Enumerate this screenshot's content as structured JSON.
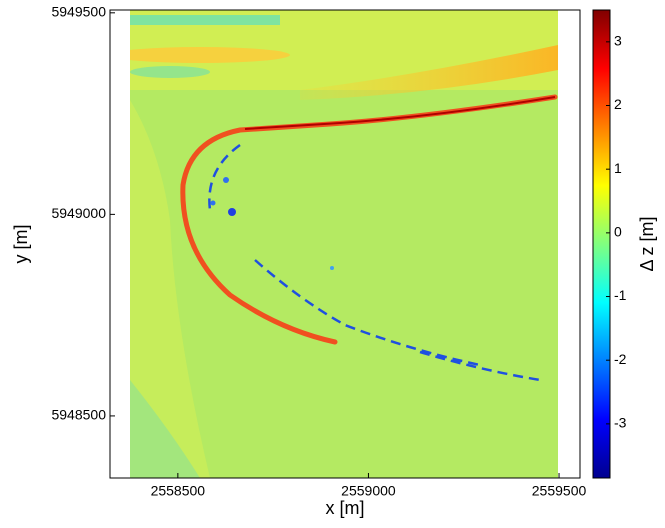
{
  "chart_data": {
    "type": "heatmap",
    "x_label": "x [m]",
    "y_label": "y [m]",
    "colorbar_label": "Δ z [m]",
    "xlim": [
      2558322,
      2559555
    ],
    "xticks": [
      2558500,
      2559000,
      2559500
    ],
    "ylim": [
      5948346,
      5949507
    ],
    "yticks": [
      5948500,
      5949000,
      5949500
    ],
    "clim": [
      -3.85,
      3.5
    ],
    "cticks": [
      -3,
      -2,
      -1,
      0,
      1,
      2,
      3
    ],
    "colormap": "jet"
  }
}
